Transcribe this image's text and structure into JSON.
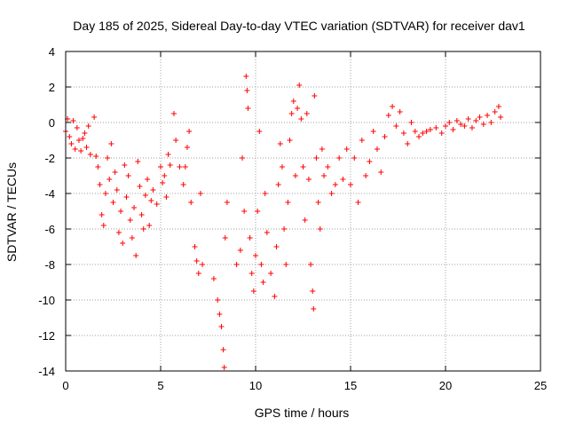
{
  "chart_data": {
    "type": "scatter",
    "title": "Day 185 of 2025, Sidereal Day-to-day VTEC variation (SDTVAR) for receiver dav1",
    "xlabel": "GPS time / hours",
    "ylabel": "SDTVAR / TECUs",
    "xlim": [
      0,
      25
    ],
    "ylim": [
      -14,
      4
    ],
    "xticks": [
      0,
      5,
      10,
      15,
      20,
      25
    ],
    "yticks": [
      -14,
      -12,
      -10,
      -8,
      -6,
      -4,
      -2,
      0,
      2,
      4
    ],
    "grid": true,
    "marker": "+",
    "series_color": "#ff0000",
    "series": [
      {
        "name": "SDTVAR",
        "points": [
          [
            0.0,
            -0.5
          ],
          [
            0.1,
            0.2
          ],
          [
            0.2,
            -0.8
          ],
          [
            0.3,
            -1.2
          ],
          [
            0.4,
            0.1
          ],
          [
            0.5,
            -1.5
          ],
          [
            0.6,
            -0.3
          ],
          [
            0.7,
            -1.0
          ],
          [
            0.8,
            -1.6
          ],
          [
            0.9,
            -0.9
          ],
          [
            1.0,
            -0.6
          ],
          [
            1.1,
            -1.4
          ],
          [
            1.2,
            -0.2
          ],
          [
            1.3,
            -1.8
          ],
          [
            1.5,
            0.3
          ],
          [
            1.6,
            -1.9
          ],
          [
            1.7,
            -2.5
          ],
          [
            1.8,
            -3.5
          ],
          [
            1.9,
            -5.2
          ],
          [
            2.0,
            -5.8
          ],
          [
            2.1,
            -4.0
          ],
          [
            2.2,
            -2.0
          ],
          [
            2.3,
            -3.2
          ],
          [
            2.4,
            -1.2
          ],
          [
            2.5,
            -4.5
          ],
          [
            2.6,
            -2.8
          ],
          [
            2.7,
            -3.8
          ],
          [
            2.8,
            -6.2
          ],
          [
            2.9,
            -5.0
          ],
          [
            3.0,
            -6.8
          ],
          [
            3.1,
            -2.4
          ],
          [
            3.2,
            -4.2
          ],
          [
            3.3,
            -3.0
          ],
          [
            3.4,
            -5.5
          ],
          [
            3.5,
            -6.5
          ],
          [
            3.6,
            -4.8
          ],
          [
            3.7,
            -7.5
          ],
          [
            3.8,
            -2.2
          ],
          [
            3.9,
            -3.6
          ],
          [
            4.0,
            -5.2
          ],
          [
            4.1,
            -6.0
          ],
          [
            4.2,
            -4.1
          ],
          [
            4.3,
            -3.2
          ],
          [
            4.4,
            -5.8
          ],
          [
            4.5,
            -4.4
          ],
          [
            4.6,
            -3.8
          ],
          [
            4.8,
            -4.6
          ],
          [
            5.0,
            -2.5
          ],
          [
            5.1,
            -3.4
          ],
          [
            5.2,
            -3.0
          ],
          [
            5.3,
            -4.2
          ],
          [
            5.4,
            -1.8
          ],
          [
            5.5,
            -2.4
          ],
          [
            5.7,
            0.5
          ],
          [
            5.8,
            -1.0
          ],
          [
            6.0,
            -2.5
          ],
          [
            6.2,
            -3.5
          ],
          [
            6.3,
            -2.5
          ],
          [
            6.4,
            -1.4
          ],
          [
            6.5,
            -0.5
          ],
          [
            6.6,
            -4.5
          ],
          [
            6.8,
            -7.0
          ],
          [
            6.9,
            -7.8
          ],
          [
            7.0,
            -8.5
          ],
          [
            7.1,
            -4.0
          ],
          [
            7.2,
            -8.0
          ],
          [
            7.8,
            -8.8
          ],
          [
            8.0,
            -10.0
          ],
          [
            8.1,
            -10.8
          ],
          [
            8.2,
            -11.5
          ],
          [
            8.3,
            -12.8
          ],
          [
            8.35,
            -13.8
          ],
          [
            8.4,
            -6.5
          ],
          [
            8.5,
            -4.5
          ],
          [
            9.0,
            -8.0
          ],
          [
            9.2,
            -7.2
          ],
          [
            9.3,
            -2.0
          ],
          [
            9.4,
            -5.0
          ],
          [
            9.5,
            2.6
          ],
          [
            9.55,
            1.8
          ],
          [
            9.6,
            0.8
          ],
          [
            9.7,
            -6.5
          ],
          [
            9.8,
            -8.5
          ],
          [
            9.9,
            -9.5
          ],
          [
            10.0,
            -7.5
          ],
          [
            10.1,
            -5.0
          ],
          [
            10.2,
            -0.5
          ],
          [
            10.3,
            -8.0
          ],
          [
            10.4,
            -9.0
          ],
          [
            10.5,
            -4.0
          ],
          [
            10.6,
            -6.2
          ],
          [
            10.8,
            -8.5
          ],
          [
            11.0,
            -9.8
          ],
          [
            11.1,
            -7.0
          ],
          [
            11.2,
            -3.5
          ],
          [
            11.3,
            -1.2
          ],
          [
            11.4,
            -2.5
          ],
          [
            11.5,
            -6.0
          ],
          [
            11.6,
            -8.0
          ],
          [
            11.7,
            -4.5
          ],
          [
            11.8,
            -1.0
          ],
          [
            11.9,
            0.5
          ],
          [
            12.0,
            1.2
          ],
          [
            12.1,
            -3.0
          ],
          [
            12.2,
            0.8
          ],
          [
            12.3,
            2.1
          ],
          [
            12.4,
            0.2
          ],
          [
            12.5,
            -2.5
          ],
          [
            12.6,
            -5.5
          ],
          [
            12.7,
            0.5
          ],
          [
            12.8,
            -3.2
          ],
          [
            12.9,
            -8.0
          ],
          [
            13.0,
            -9.5
          ],
          [
            13.05,
            -10.5
          ],
          [
            13.1,
            1.5
          ],
          [
            13.2,
            -2.0
          ],
          [
            13.3,
            -4.5
          ],
          [
            13.4,
            -6.0
          ],
          [
            13.5,
            -1.5
          ],
          [
            13.6,
            -3.0
          ],
          [
            13.8,
            -2.5
          ],
          [
            14.0,
            -4.0
          ],
          [
            14.2,
            -3.5
          ],
          [
            14.4,
            -2.0
          ],
          [
            14.6,
            -3.2
          ],
          [
            14.8,
            -1.5
          ],
          [
            15.0,
            -3.5
          ],
          [
            15.2,
            -2.0
          ],
          [
            15.4,
            -4.5
          ],
          [
            15.6,
            -1.0
          ],
          [
            15.8,
            -3.0
          ],
          [
            16.0,
            -2.2
          ],
          [
            16.2,
            -0.5
          ],
          [
            16.4,
            -1.5
          ],
          [
            16.6,
            -2.8
          ],
          [
            16.8,
            -0.8
          ],
          [
            17.0,
            0.4
          ],
          [
            17.2,
            0.9
          ],
          [
            17.4,
            -0.2
          ],
          [
            17.6,
            0.6
          ],
          [
            17.8,
            -0.6
          ],
          [
            18.0,
            -1.2
          ],
          [
            18.2,
            0.0
          ],
          [
            18.4,
            -0.5
          ],
          [
            18.6,
            -0.8
          ],
          [
            18.8,
            -0.6
          ],
          [
            19.0,
            -0.5
          ],
          [
            19.2,
            -0.4
          ],
          [
            19.5,
            -0.3
          ],
          [
            19.8,
            -0.6
          ],
          [
            20.0,
            -0.2
          ],
          [
            20.2,
            0.0
          ],
          [
            20.4,
            -0.4
          ],
          [
            20.6,
            0.1
          ],
          [
            20.8,
            -0.1
          ],
          [
            21.0,
            -0.2
          ],
          [
            21.2,
            0.2
          ],
          [
            21.4,
            -0.3
          ],
          [
            21.6,
            0.1
          ],
          [
            21.8,
            0.3
          ],
          [
            22.0,
            -0.1
          ],
          [
            22.2,
            0.4
          ],
          [
            22.4,
            0.0
          ],
          [
            22.6,
            0.6
          ],
          [
            22.8,
            0.9
          ],
          [
            22.9,
            0.3
          ]
        ]
      }
    ]
  }
}
